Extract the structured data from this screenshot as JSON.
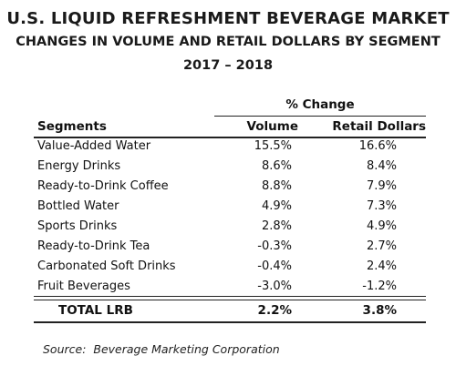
{
  "title": "U.S. LIQUID REFRESHMENT BEVERAGE MARKET",
  "subtitle": "CHANGES IN VOLUME AND RETAIL DOLLARS BY SEGMENT",
  "years": "2017 – 2018",
  "table": {
    "group_header": "% Change",
    "columns": {
      "segments": "Segments",
      "volume": "Volume",
      "retail": "Retail Dollars"
    },
    "rows": [
      {
        "segment": "Value-Added Water",
        "volume": "15.5%",
        "retail": "16.6%"
      },
      {
        "segment": "Energy Drinks",
        "volume": "8.6%",
        "retail": "8.4%"
      },
      {
        "segment": "Ready-to-Drink Coffee",
        "volume": "8.8%",
        "retail": "7.9%"
      },
      {
        "segment": "Bottled Water",
        "volume": "4.9%",
        "retail": "7.3%"
      },
      {
        "segment": "Sports Drinks",
        "volume": "2.8%",
        "retail": "4.9%"
      },
      {
        "segment": "Ready-to-Drink Tea",
        "volume": "-0.3%",
        "retail": "2.7%"
      },
      {
        "segment": "Carbonated Soft Drinks",
        "volume": "-0.4%",
        "retail": "2.4%"
      },
      {
        "segment": "Fruit Beverages",
        "volume": "-3.0%",
        "retail": "-1.2%"
      }
    ],
    "total": {
      "segment": "TOTAL LRB",
      "volume": "2.2%",
      "retail": "3.8%"
    }
  },
  "source": "Source:  Beverage Marketing Corporation"
}
